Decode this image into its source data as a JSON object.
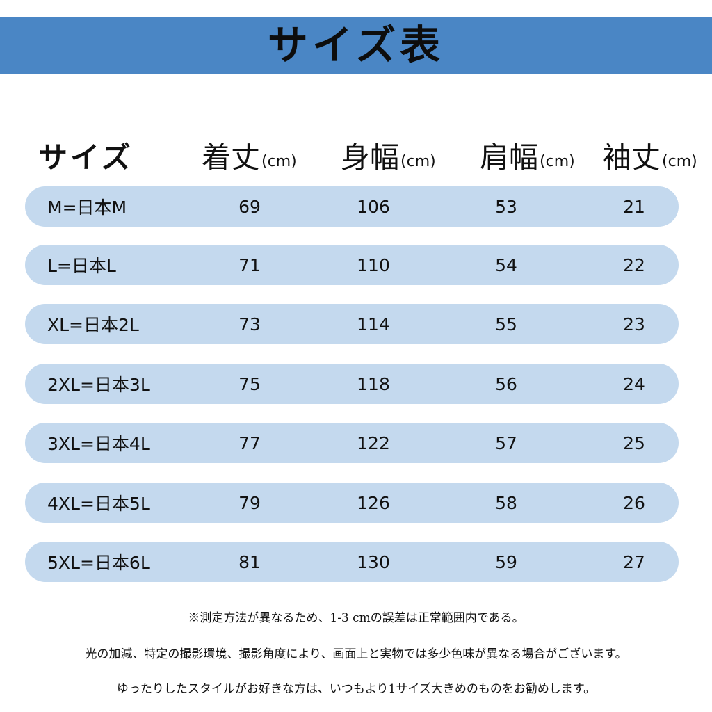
{
  "title": "サイズ表",
  "headers": {
    "size": "サイズ",
    "columns": [
      {
        "label": "着丈",
        "unit": "(cm)"
      },
      {
        "label": "身幅",
        "unit": "(cm)"
      },
      {
        "label": "肩幅",
        "unit": "(cm)"
      },
      {
        "label": "袖丈",
        "unit": "(cm)"
      }
    ]
  },
  "rows": [
    {
      "size": "M=日本M",
      "values": [
        "69",
        "106",
        "53",
        "21"
      ]
    },
    {
      "size": "L=日本L",
      "values": [
        "71",
        "110",
        "54",
        "22"
      ]
    },
    {
      "size": "XL=日本2L",
      "values": [
        "73",
        "114",
        "55",
        "23"
      ]
    },
    {
      "size": "2XL=日本3L",
      "values": [
        "75",
        "118",
        "56",
        "24"
      ]
    },
    {
      "size": "3XL=日本4L",
      "values": [
        "77",
        "122",
        "57",
        "25"
      ]
    },
    {
      "size": "4XL=日本5L",
      "values": [
        "79",
        "126",
        "58",
        "26"
      ]
    },
    {
      "size": "5XL=日本6L",
      "values": [
        "81",
        "130",
        "59",
        "27"
      ]
    }
  ],
  "notes": [
    "※測定方法が異なるため、1-3 cmの誤差は正常範囲内である。",
    "光の加減、特定の撮影環境、撮影角度により、画面上と実物では多少色味が異なる場合がございます。",
    "ゆったりしたスタイルがお好きな方は、いつもより1サイズ大きめのものをお勧めします。"
  ],
  "colors": {
    "banner": "#4a86c5",
    "row": "#c4d9ee"
  }
}
